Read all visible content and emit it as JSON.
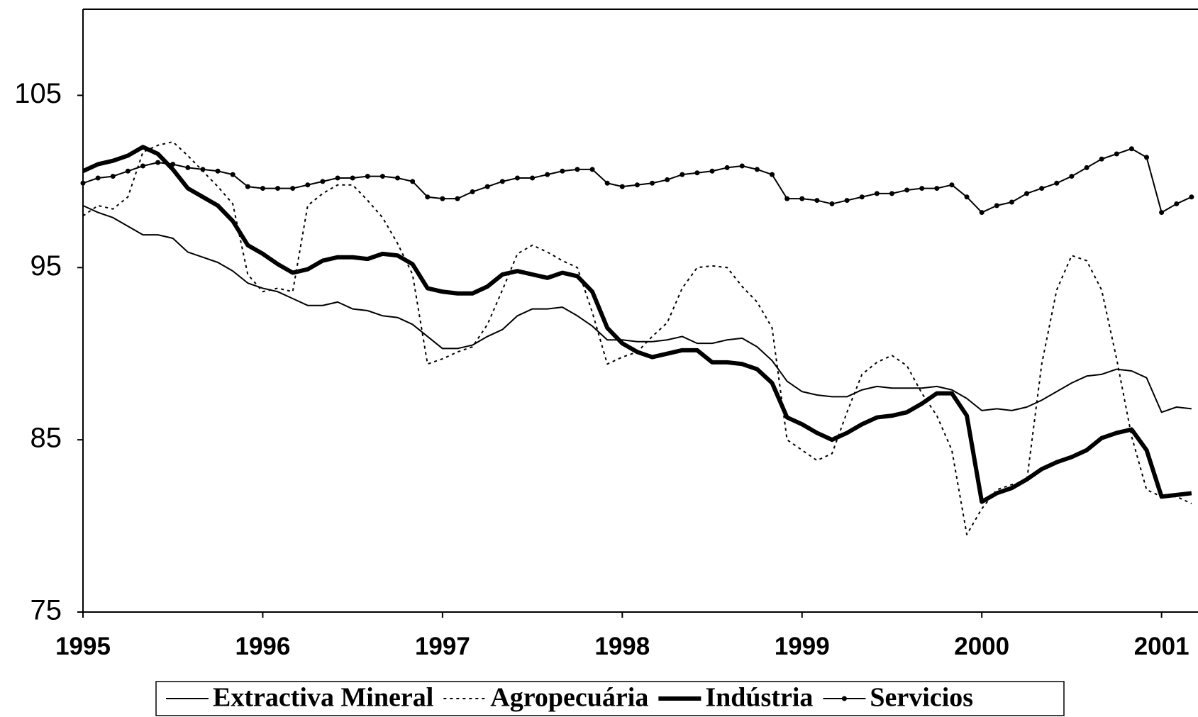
{
  "chart_data": {
    "type": "line",
    "categories": [
      "1995",
      null,
      null,
      null,
      null,
      null,
      null,
      null,
      null,
      null,
      null,
      null,
      "1996",
      null,
      null,
      null,
      null,
      null,
      null,
      null,
      null,
      null,
      null,
      null,
      "1997",
      null,
      null,
      null,
      null,
      null,
      null,
      null,
      null,
      null,
      null,
      null,
      "1998",
      null,
      null,
      null,
      null,
      null,
      null,
      null,
      null,
      null,
      null,
      null,
      "1999",
      null,
      null,
      null,
      null,
      null,
      null,
      null,
      null,
      null,
      null,
      null,
      "2000",
      null,
      null,
      null,
      null,
      null,
      null,
      null,
      null,
      null,
      null,
      null,
      "2001",
      null,
      null
    ],
    "ylim": [
      75,
      110
    ],
    "yticks": [
      75,
      85,
      95,
      105
    ],
    "grid": false,
    "legend": "bottom",
    "series": [
      {
        "name": "Extractiva Mineral",
        "color": "#000000",
        "line_style": "solid",
        "values": [
          98.6,
          98.2,
          97.9,
          97.4,
          96.9,
          96.9,
          96.7,
          95.9,
          95.6,
          95.3,
          94.8,
          94.1,
          93.8,
          93.6,
          93.2,
          92.8,
          92.8,
          93.0,
          92.6,
          92.5,
          92.2,
          92.1,
          91.7,
          91.0,
          90.3,
          90.3,
          90.5,
          91.0,
          91.4,
          92.2,
          92.6,
          92.6,
          92.7,
          92.2,
          91.6,
          90.8,
          90.8,
          90.7,
          90.7,
          90.8,
          91.0,
          90.6,
          90.6,
          90.8,
          90.9,
          90.4,
          89.6,
          88.4,
          87.8,
          87.6,
          87.5,
          87.5,
          87.9,
          88.1,
          88.0,
          88.0,
          88.0,
          88.1,
          87.9,
          87.4,
          86.7,
          86.8,
          86.7,
          86.9,
          87.3,
          87.8,
          88.3,
          88.7,
          88.8,
          89.1,
          89.0,
          88.6,
          86.6,
          86.9,
          86.8
        ]
      },
      {
        "name": "Agropecuária",
        "color": "#000000",
        "line_style": "dotted",
        "values": [
          98.0,
          98.6,
          98.4,
          99.1,
          101.7,
          102.1,
          102.3,
          101.5,
          100.6,
          99.7,
          98.7,
          94.6,
          93.6,
          93.8,
          93.6,
          98.6,
          99.3,
          99.8,
          99.8,
          98.9,
          97.9,
          96.4,
          94.6,
          89.4,
          89.7,
          90.1,
          90.4,
          91.7,
          93.7,
          95.8,
          96.3,
          95.9,
          95.4,
          95.0,
          92.4,
          89.4,
          89.8,
          90.1,
          91.0,
          91.8,
          93.8,
          95.0,
          95.1,
          95.0,
          93.9,
          93.0,
          91.5,
          85.0,
          84.4,
          83.8,
          84.2,
          86.6,
          88.8,
          89.5,
          89.9,
          89.3,
          87.7,
          86.4,
          84.4,
          79.5,
          81.0,
          82.1,
          82.4,
          82.6,
          89.4,
          93.7,
          95.7,
          95.4,
          93.7,
          89.7,
          85.2,
          82.1,
          81.7,
          81.7,
          81.3
        ]
      },
      {
        "name": "Indústria",
        "color": "#000000",
        "line_style": "thick",
        "values": [
          100.6,
          101.0,
          101.2,
          101.5,
          102.0,
          101.6,
          100.7,
          99.6,
          99.1,
          98.6,
          97.7,
          96.3,
          95.8,
          95.2,
          94.7,
          94.9,
          95.4,
          95.6,
          95.6,
          95.5,
          95.8,
          95.7,
          95.2,
          93.8,
          93.6,
          93.5,
          93.5,
          93.9,
          94.6,
          94.8,
          94.6,
          94.4,
          94.7,
          94.5,
          93.6,
          91.5,
          90.6,
          90.1,
          89.8,
          90.0,
          90.2,
          90.2,
          89.5,
          89.5,
          89.4,
          89.1,
          88.3,
          86.3,
          85.9,
          85.4,
          85.0,
          85.4,
          85.9,
          86.3,
          86.4,
          86.6,
          87.1,
          87.7,
          87.7,
          86.4,
          81.4,
          81.9,
          82.2,
          82.7,
          83.3,
          83.7,
          84.0,
          84.4,
          85.1,
          85.4,
          85.6,
          84.4,
          81.7,
          81.8,
          81.9
        ]
      },
      {
        "name": "Servicios",
        "color": "#000000",
        "line_style": "markers",
        "values": [
          99.9,
          100.2,
          100.3,
          100.6,
          100.9,
          101.1,
          101.0,
          100.8,
          100.7,
          100.6,
          100.4,
          99.7,
          99.6,
          99.6,
          99.6,
          99.8,
          100.0,
          100.2,
          100.2,
          100.3,
          100.3,
          100.2,
          100.0,
          99.1,
          99.0,
          99.0,
          99.4,
          99.7,
          100.0,
          100.2,
          100.2,
          100.4,
          100.6,
          100.7,
          100.7,
          99.9,
          99.7,
          99.8,
          99.9,
          100.1,
          100.4,
          100.5,
          100.6,
          100.8,
          100.9,
          100.7,
          100.4,
          99.0,
          99.0,
          98.9,
          98.7,
          98.9,
          99.1,
          99.3,
          99.3,
          99.5,
          99.6,
          99.6,
          99.8,
          99.1,
          98.2,
          98.6,
          98.8,
          99.3,
          99.6,
          99.9,
          100.3,
          100.8,
          101.3,
          101.6,
          101.9,
          101.4,
          98.2,
          98.7,
          99.1
        ]
      }
    ]
  }
}
